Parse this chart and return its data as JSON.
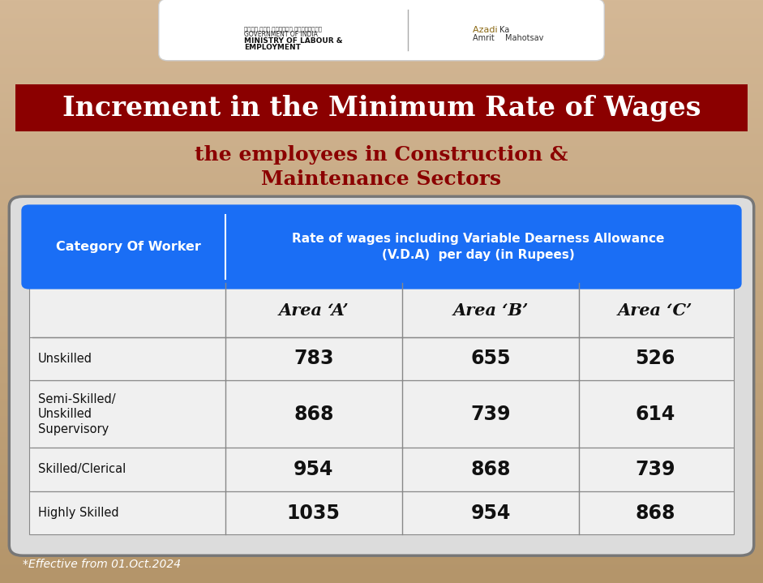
{
  "title_line1": "Increment in the Minimum Rate of Wages",
  "title_line2": "the employees in Construction &",
  "title_line3": "Maintenance Sectors",
  "title_bg_color": "#8B0000",
  "title_text_color": "#FFFFFF",
  "subtitle_text_color": "#8B0000",
  "table_header_bg": "#1A6EF5",
  "table_header_text_color": "#FFFFFF",
  "table_body_bg": "#DCDCDC",
  "table_cell_bg": "#E8E8E8",
  "table_border_color": "#888888",
  "col_header_1": "Category Of Worker",
  "col_header_2": "Rate of wages including Variable Dearness Allowance\n(V.D.A)  per day (in Rupees)",
  "area_headers": [
    "Area ‘A’",
    "Area ‘B’",
    "Area ‘C’"
  ],
  "categories": [
    "Unskilled",
    "Semi-Skilled/\nUnskilled\nSupervisory",
    "Skilled/Clerical",
    "Highly Skilled"
  ],
  "data": [
    [
      783,
      655,
      526
    ],
    [
      868,
      739,
      614
    ],
    [
      954,
      868,
      739
    ],
    [
      1035,
      954,
      868
    ]
  ],
  "footer_text": "*Effective from 01.Oct.2024",
  "footer_color": "#FFFFFF",
  "bg_color_top": "#D4B896",
  "bg_color_bottom": "#B8956A",
  "fig_width": 9.41,
  "fig_height": 7.19
}
